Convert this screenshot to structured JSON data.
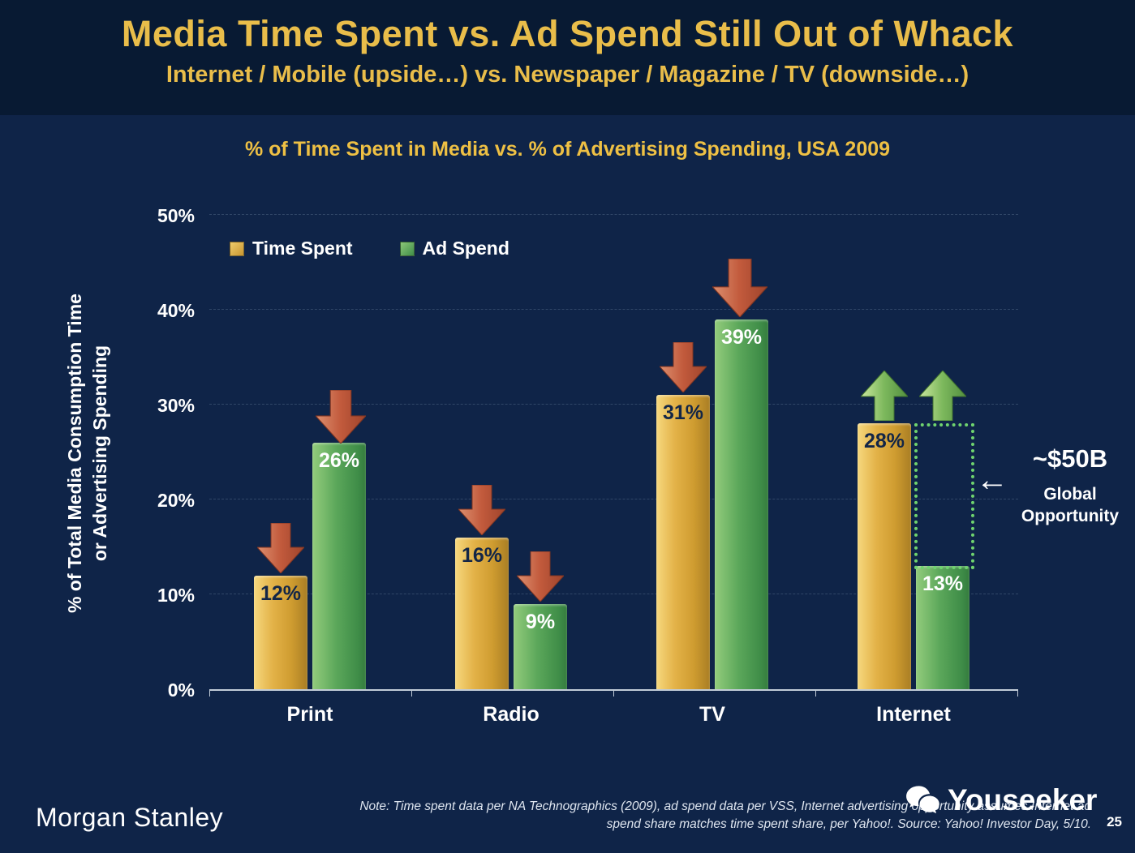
{
  "header": {
    "title": "Media Time Spent vs. Ad Spend Still Out of Whack",
    "subtitle": "Internet / Mobile (upside…) vs. Newspaper / Magazine / TV (downside…)"
  },
  "chart_data": {
    "type": "bar",
    "title": "% of Time Spent in Media vs. % of Advertising Spending, USA 2009",
    "ylabel_line1": "% of Total Media Consumption Time",
    "ylabel_line2": "or Advertising Spending",
    "categories": [
      "Print",
      "Radio",
      "TV",
      "Internet"
    ],
    "series": [
      {
        "name": "Time Spent",
        "color": "#d9a833",
        "values": [
          12,
          16,
          31,
          28
        ]
      },
      {
        "name": "Ad Spend",
        "color": "#4f9e52",
        "values": [
          26,
          9,
          39,
          13
        ]
      }
    ],
    "bar_labels": [
      [
        "12%",
        "16%",
        "31%",
        "28%"
      ],
      [
        "26%",
        "9%",
        "39%",
        "13%"
      ]
    ],
    "yticks": [
      "0%",
      "10%",
      "20%",
      "30%",
      "40%",
      "50%"
    ],
    "ylim": [
      0,
      50
    ],
    "grid": true,
    "legend_position": "top-left",
    "trend_arrows": {
      "Print": [
        "down",
        "down"
      ],
      "Radio": [
        "down",
        "down"
      ],
      "TV": [
        "down",
        "down"
      ],
      "Internet": [
        "up",
        "up"
      ]
    }
  },
  "annotation": {
    "value": "~$50B",
    "arrow": "←",
    "label_line1": "Global",
    "label_line2": "Opportunity"
  },
  "footer": {
    "brand": "Morgan Stanley",
    "note_line1": "Note: Time spent data per NA Technographics (2009), ad spend data per VSS, Internet advertising opportunity assumes Internet ad",
    "note_line2": "spend share matches time spent share, per Yahoo!. Source: Yahoo! Investor Day, 5/10.",
    "page_number": "25",
    "watermark": "Youseeker"
  },
  "colors": {
    "background": "#0f2448",
    "header_background": "#081a33",
    "accent_gold": "#e9bd4a",
    "bar_gold": "#d9a833",
    "bar_green": "#4f9e52",
    "arrow_red": "#bf5b41",
    "arrow_green": "#7cb85c",
    "opportunity_green": "#6fd36f"
  }
}
